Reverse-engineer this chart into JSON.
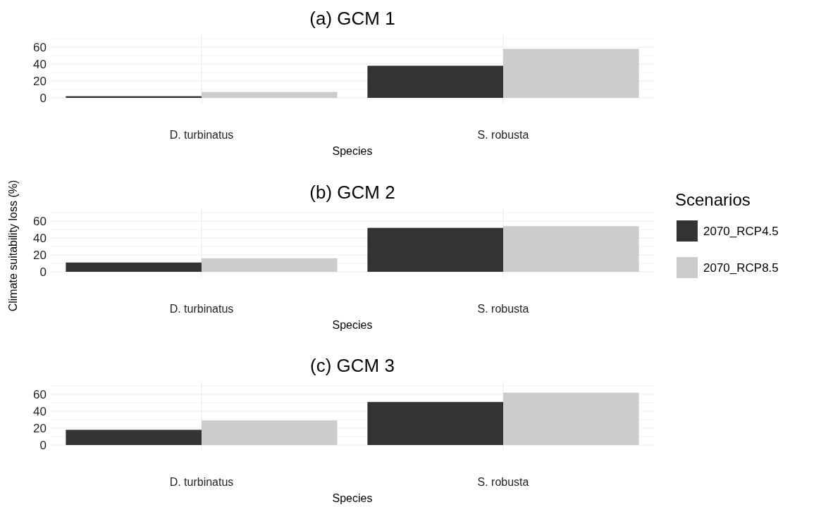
{
  "chart_data": [
    {
      "type": "bar",
      "title": "(a) GCM 1",
      "xlabel": "Species",
      "categories": [
        "D. turbinatus",
        "S. robusta"
      ],
      "series": [
        {
          "color": "#333333",
          "values": [
            2,
            38
          ]
        },
        {
          "color": "#cccccc",
          "values": [
            7,
            58
          ]
        }
      ],
      "ylim": [
        0,
        70
      ],
      "yticks": [
        0,
        {
          "value": 10,
          "label": null
        },
        20,
        {
          "value": 30,
          "label": null
        },
        40,
        {
          "value": 50,
          "label": null
        },
        60,
        {
          "value": 70,
          "label": null
        }
      ],
      "grid": true
    },
    {
      "type": "bar",
      "title": "(b) GCM 2",
      "xlabel": "Species",
      "ylabel": "Climate suitability loss (%)",
      "legend_title": "Scenarios",
      "legend": "right",
      "categories": [
        "D. turbinatus",
        "S. robusta"
      ],
      "series": [
        {
          "name": "2070_RCP4.5",
          "color": "#333333",
          "values": [
            11,
            52
          ]
        },
        {
          "name": "2070_RCP8.5",
          "color": "#cccccc",
          "values": [
            16,
            54
          ]
        }
      ],
      "ylim": [
        0,
        70
      ],
      "yticks": [
        0,
        {
          "value": 10,
          "label": null
        },
        20,
        {
          "value": 30,
          "label": null
        },
        40,
        {
          "value": 50,
          "label": null
        },
        60,
        {
          "value": 70,
          "label": null
        }
      ],
      "grid": true
    },
    {
      "type": "bar",
      "title": "(c) GCM 3",
      "xlabel": "Species",
      "categories": [
        "D. turbinatus",
        "S. robusta"
      ],
      "series": [
        {
          "color": "#333333",
          "values": [
            18,
            51
          ]
        },
        {
          "color": "#cccccc",
          "values": [
            29,
            62
          ]
        }
      ],
      "ylim": [
        0,
        70
      ],
      "yticks": [
        0,
        {
          "value": 10,
          "label": null
        },
        20,
        {
          "value": 30,
          "label": null
        },
        40,
        {
          "value": 50,
          "label": null
        },
        60,
        {
          "value": 70,
          "label": null
        }
      ],
      "grid": true
    }
  ]
}
